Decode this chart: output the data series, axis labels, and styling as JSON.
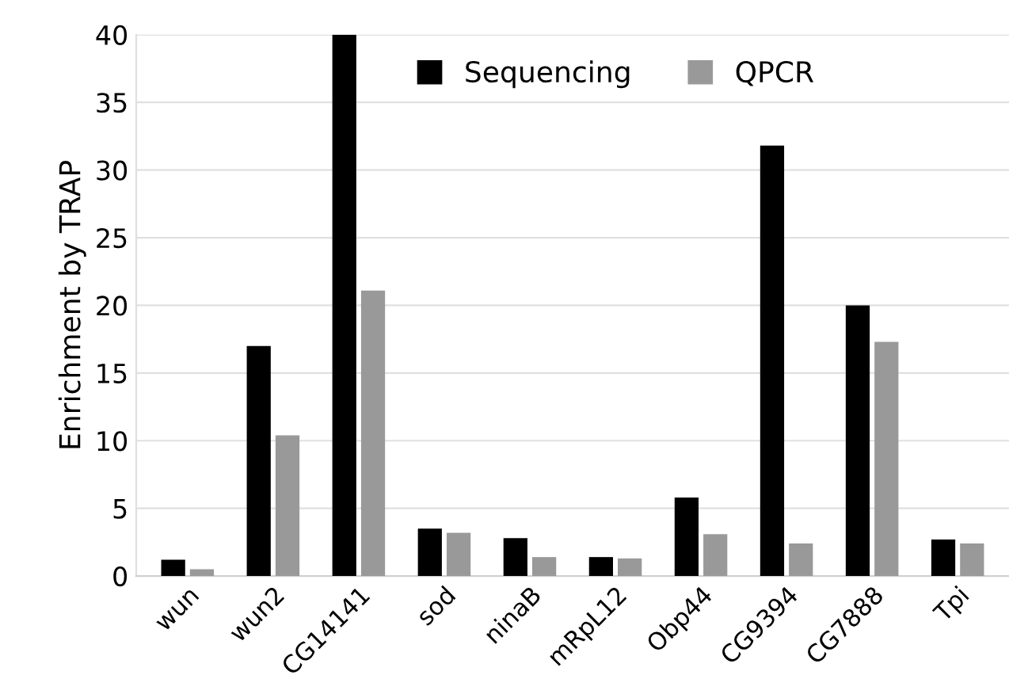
{
  "chart_data": {
    "type": "bar",
    "ylabel": "Enrichment by TRAP",
    "categories": [
      "wun",
      "wun2",
      "CG14141",
      "sod",
      "ninaB",
      "mRpL12",
      "Obp44",
      "CG9394",
      "CG7888",
      "Tpi"
    ],
    "series": [
      {
        "name": "Sequencing",
        "color": "#000000",
        "values": [
          1.2,
          17,
          40,
          3.5,
          2.8,
          1.4,
          5.8,
          31.8,
          20,
          2.7
        ]
      },
      {
        "name": "QPCR",
        "color": "#999999",
        "values": [
          0.5,
          10.4,
          21.1,
          3.2,
          1.4,
          1.3,
          3.1,
          2.4,
          17.3,
          2.4
        ]
      }
    ],
    "ylim": [
      0,
      40
    ],
    "yticks": [
      0,
      5,
      10,
      15,
      20,
      25,
      30,
      35,
      40
    ],
    "grid": "y",
    "legend": "top"
  }
}
